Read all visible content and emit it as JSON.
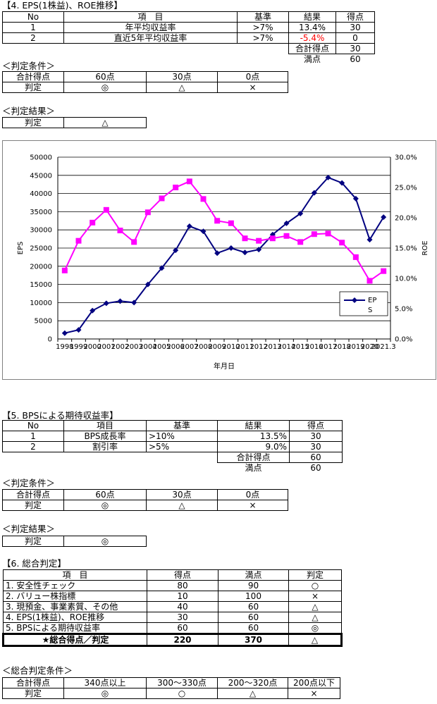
{
  "sec4": {
    "title": "【4. EPS(1株益)、ROE推移】",
    "headers": [
      "No",
      "項　目",
      "基準",
      "結果",
      "得点"
    ],
    "rows": [
      {
        "no": "1",
        "item": "年平均収益率",
        "criteria": ">7%",
        "result": "13.4%",
        "score": "30"
      },
      {
        "no": "2",
        "item": "直近5年平均収益率",
        "criteria": ">7%",
        "result": "-5.4%",
        "score": "0"
      }
    ],
    "total_label": "合計得点",
    "total_value": "30",
    "max_label": "満点",
    "max_value": "60",
    "cond_title": "＜判定条件＞",
    "cond_row1": [
      "合計得点",
      "60点",
      "30点",
      "0点"
    ],
    "cond_row2": [
      "判定",
      "◎",
      "△",
      "×"
    ],
    "result_title": "＜判定結果＞",
    "result_row": [
      "判定",
      "△"
    ]
  },
  "chart_data": {
    "type": "line",
    "xlabel": "年月日",
    "ylabel": "EPS",
    "y2label": "ROE",
    "ylim": [
      0,
      50000
    ],
    "y_ticks": [
      "0",
      "5000",
      "10000",
      "15000",
      "20000",
      "25000",
      "30000",
      "35000",
      "40000",
      "45000",
      "50000"
    ],
    "y2lim": [
      0,
      30
    ],
    "y2_ticks": [
      "0.0%",
      "5.0%",
      "10.0%",
      "15.0%",
      "20.0%",
      "25.0%",
      "30.0%"
    ],
    "x_tick_text": "1998 1999 2000 2001 2002 2003 2004 2005 2006 2007 2008 2009 2010 2011 2012 2013 2014 2015 2016 2017 2018 2019 2020 2021.3",
    "x_ticks": [
      "1998",
      "1999",
      "2000",
      "2001",
      "2002",
      "2003",
      "2004",
      "2005",
      "2006",
      "2007",
      "2008",
      "2009",
      "2010",
      "2011",
      "2012",
      "2013",
      "2014",
      "2015",
      "2016",
      "2017",
      "2018",
      "2019",
      "2020",
      "2021.3"
    ],
    "legend": {
      "entry": "EPS",
      "placement": "right"
    },
    "series": [
      {
        "name": "EPS",
        "axis": "left",
        "color": "#000080",
        "marker": "diamond",
        "values": [
          1600,
          2500,
          7800,
          9800,
          10400,
          10000,
          15000,
          19500,
          24400,
          31000,
          29600,
          23600,
          25000,
          23800,
          24600,
          28700,
          31800,
          34500,
          40200,
          44400,
          42900,
          38600,
          27300,
          33500
        ]
      },
      {
        "axis": "right",
        "color": "#ff00ff",
        "marker": "square",
        "values": [
          11.3,
          16.2,
          19.2,
          21.3,
          17.9,
          16.0,
          20.9,
          23.2,
          25.0,
          26.0,
          23.1,
          19.5,
          19.1,
          16.6,
          16.2,
          16.6,
          17.0,
          16.0,
          17.3,
          17.4,
          15.9,
          13.5,
          9.6,
          11.2
        ]
      }
    ]
  },
  "sec5": {
    "title": "【5. BPSによる期待収益率】",
    "headers": [
      "No",
      "項目",
      "基準",
      "結果",
      "得点"
    ],
    "rows": [
      {
        "no": "1",
        "item": "BPS成長率",
        "criteria": ">10%",
        "result": "13.5%",
        "score": "30"
      },
      {
        "no": "2",
        "item": "割引率",
        "criteria": ">5%",
        "result": "9.0%",
        "score": "30"
      }
    ],
    "total_label": "合計得点",
    "total_value": "60",
    "max_label": "満点",
    "max_value": "60",
    "cond_title": "＜判定条件＞",
    "cond_row1": [
      "合計得点",
      "60点",
      "30点",
      "0点"
    ],
    "cond_row2": [
      "判定",
      "◎",
      "△",
      "×"
    ],
    "result_title": "＜判定結果＞",
    "result_row": [
      "判定",
      "◎"
    ]
  },
  "sec6": {
    "title": "【6. 総合判定】",
    "headers": [
      "項　目",
      "得点",
      "満点",
      "判定"
    ],
    "rows": [
      {
        "item": "1. 安全性チェック",
        "score": "80",
        "max": "90",
        "judge": "○"
      },
      {
        "item": "2. バリュー株指標",
        "score": "10",
        "max": "100",
        "judge": "×"
      },
      {
        "item": "3. 現預金、事業素質、その他",
        "score": "40",
        "max": "60",
        "judge": "△"
      },
      {
        "item": "4. EPS(1株益)、ROE推移",
        "score": "30",
        "max": "60",
        "judge": "△"
      },
      {
        "item": "5. BPSによる期待収益率",
        "score": "60",
        "max": "60",
        "judge": "◎"
      }
    ],
    "total": {
      "item": "★総合得点／判定",
      "score": "220",
      "max": "370",
      "judge": "△"
    },
    "cond_title": "＜総合判定条件＞",
    "cond_row1": [
      "合計得点",
      "340点以上",
      "300～330点",
      "200～320点",
      "200点以下"
    ],
    "cond_row2": [
      "判定",
      "◎",
      "○",
      "△",
      "×"
    ]
  }
}
